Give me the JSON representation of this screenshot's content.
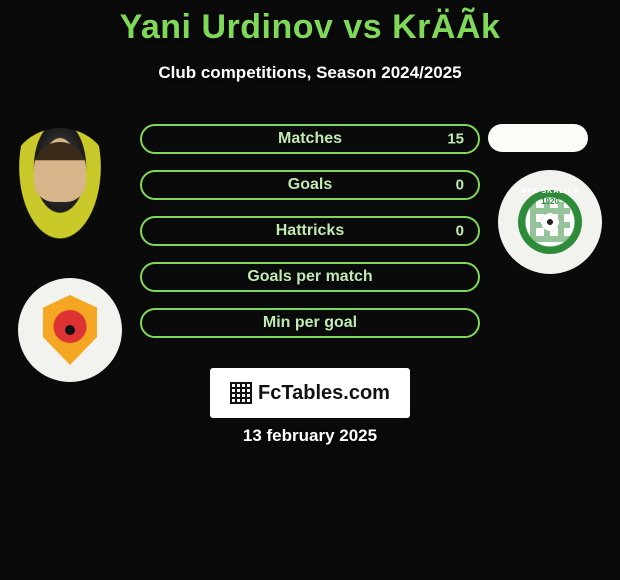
{
  "title": "Yani Urdinov vs KrÄÃk",
  "subtitle": "Club competitions, Season 2024/2025",
  "date": "13 february 2025",
  "colors": {
    "accent": "#7fd858",
    "background": "#0a0a0a",
    "pill_text": "#bfeab0",
    "badge_bg": "#ffffff",
    "badge_text": "#111111"
  },
  "stats": [
    {
      "label": "Matches",
      "value": "15"
    },
    {
      "label": "Goals",
      "value": "0"
    },
    {
      "label": "Hattricks",
      "value": "0"
    },
    {
      "label": "Goals per match",
      "value": ""
    },
    {
      "label": "Min per goal",
      "value": ""
    }
  ],
  "brand": {
    "text": "FcTables.com"
  },
  "left_player": {
    "name": "Yani Urdinov",
    "club_crest": "MFK Ružomberok"
  },
  "right_player": {
    "name": "KrÄÃk",
    "club_crest": "MFK Skalica",
    "crest_year": "1920"
  }
}
